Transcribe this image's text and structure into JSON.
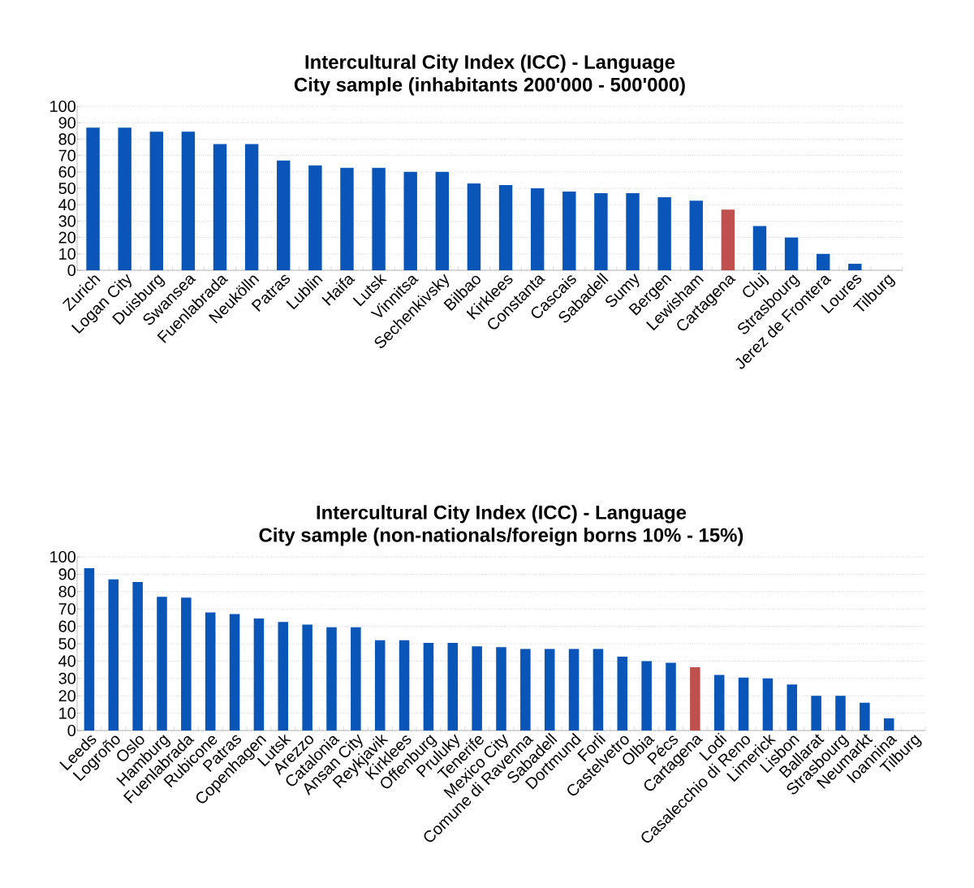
{
  "chart_data": [
    {
      "type": "bar",
      "title": "Intercultural City Index (ICC) - Language",
      "subtitle": "City sample (inhabitants 200'000 - 500'000)",
      "categories": [
        "Zurich",
        "Logan City",
        "Duisburg",
        "Swansea",
        "Fuenlabrada",
        "Neukölln",
        "Patras",
        "Lublin",
        "Haifa",
        "Lutsk",
        "Vinnitsa",
        "Sechenkivsky",
        "Bilbao",
        "Kirklees",
        "Constanta",
        "Cascais",
        "Sabadell",
        "Sumy",
        "Bergen",
        "Lewisham",
        "Cartagena",
        "Cluj",
        "Strasbourg",
        "Jerez de Frontera",
        "Loures",
        "Tilburg"
      ],
      "values": [
        87,
        87,
        84.5,
        84.5,
        77,
        77,
        67,
        64,
        62.5,
        62.5,
        60,
        60,
        53,
        52,
        50,
        48,
        47,
        47,
        44.5,
        42.5,
        37,
        27,
        20,
        10,
        4,
        0
      ],
      "colors": [
        "#0a56b8",
        "#0a56b8",
        "#0a56b8",
        "#0a56b8",
        "#0a56b8",
        "#0a56b8",
        "#0a56b8",
        "#0a56b8",
        "#0a56b8",
        "#0a56b8",
        "#0a56b8",
        "#0a56b8",
        "#0a56b8",
        "#0a56b8",
        "#0a56b8",
        "#0a56b8",
        "#0a56b8",
        "#0a56b8",
        "#0a56b8",
        "#0a56b8",
        "#c0504d",
        "#0a56b8",
        "#0a56b8",
        "#0a56b8",
        "#0a56b8",
        "#0a56b8"
      ],
      "ylim": [
        0,
        100
      ],
      "yticks": [
        0,
        10,
        20,
        30,
        40,
        50,
        60,
        70,
        80,
        90,
        100
      ],
      "grid": "y"
    },
    {
      "type": "bar",
      "title": "Intercultural City Index (ICC) - Language",
      "subtitle": "City sample (non-nationals/foreign borns 10% - 15%)",
      "categories": [
        "Leeds",
        "Logroño",
        "Oslo",
        "Hamburg",
        "Fuenlabrada",
        "Rubicone",
        "Patras",
        "Copenhagen",
        "Lutsk",
        "Arezzo",
        "Catalonia",
        "Ansan City",
        "Reykjavik",
        "Kirklees",
        "Offenburg",
        "Pruluky",
        "Tenerife",
        "Mexico City",
        "Comune di Ravenna",
        "Sabadell",
        "Dortmund",
        "Forli",
        "Castelvetro",
        "Olbia",
        "Pécs",
        "Cartagena",
        "Lodi",
        "Casalecchio di Reno",
        "Limerick",
        "Lisbon",
        "Ballarat",
        "Strasbourg",
        "Neumarkt",
        "Ioannina",
        "Tilburg"
      ],
      "values": [
        93.5,
        87,
        85.5,
        77,
        76.5,
        68,
        67,
        64.5,
        62.5,
        61,
        59.5,
        59.5,
        52,
        52,
        50.5,
        50.5,
        48.5,
        48,
        47,
        47,
        47,
        47,
        42.5,
        40,
        39,
        36.5,
        32,
        30.5,
        30,
        26.5,
        20,
        20,
        16,
        7,
        0
      ],
      "colors": [
        "#0a56b8",
        "#0a56b8",
        "#0a56b8",
        "#0a56b8",
        "#0a56b8",
        "#0a56b8",
        "#0a56b8",
        "#0a56b8",
        "#0a56b8",
        "#0a56b8",
        "#0a56b8",
        "#0a56b8",
        "#0a56b8",
        "#0a56b8",
        "#0a56b8",
        "#0a56b8",
        "#0a56b8",
        "#0a56b8",
        "#0a56b8",
        "#0a56b8",
        "#0a56b8",
        "#0a56b8",
        "#0a56b8",
        "#0a56b8",
        "#0a56b8",
        "#c0504d",
        "#0a56b8",
        "#0a56b8",
        "#0a56b8",
        "#0a56b8",
        "#0a56b8",
        "#0a56b8",
        "#0a56b8",
        "#0a56b8",
        "#0a56b8"
      ],
      "ylim": [
        0,
        100
      ],
      "yticks": [
        0,
        10,
        20,
        30,
        40,
        50,
        60,
        70,
        80,
        90,
        100
      ],
      "grid": "y"
    }
  ]
}
